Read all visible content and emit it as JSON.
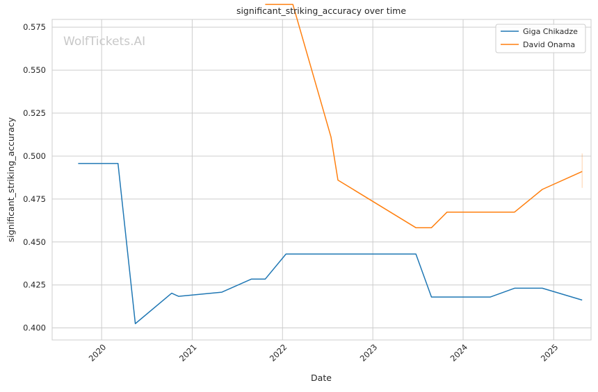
{
  "chart_data": {
    "type": "line",
    "title": "significant_striking_accuracy over time",
    "xlabel": "Date",
    "ylabel": "significant_striking_accuracy",
    "watermark": "WolfTickets.AI",
    "grid": true,
    "legend_position": "top-right",
    "xlim": [
      "2019-06-15",
      "2025-06-01"
    ],
    "ylim": [
      0.393,
      0.5795
    ],
    "x_ticks": [
      "2020-01-01",
      "2021-01-01",
      "2022-01-01",
      "2023-01-01",
      "2024-01-01",
      "2025-01-01"
    ],
    "x_tick_labels": [
      "2020",
      "2021",
      "2022",
      "2023",
      "2024",
      "2025"
    ],
    "y_ticks": [
      0.4,
      0.425,
      0.45,
      0.475,
      0.5,
      0.525,
      0.55,
      0.575
    ],
    "y_tick_labels": [
      "0.400",
      "0.425",
      "0.450",
      "0.475",
      "0.500",
      "0.525",
      "0.550",
      "0.575"
    ],
    "series": [
      {
        "name": "Giga Chikadze",
        "color": "#1f77b4",
        "points": [
          {
            "x": "2019-09-28",
            "y": 0.4957
          },
          {
            "x": "2020-03-07",
            "y": 0.4957
          },
          {
            "x": "2020-05-16",
            "y": 0.4025
          },
          {
            "x": "2020-10-10",
            "y": 0.4202
          },
          {
            "x": "2020-11-07",
            "y": 0.4184
          },
          {
            "x": "2021-05-01",
            "y": 0.4208
          },
          {
            "x": "2021-08-28",
            "y": 0.4284
          },
          {
            "x": "2021-10-23",
            "y": 0.4284
          },
          {
            "x": "2022-01-15",
            "y": 0.443
          },
          {
            "x": "2023-06-24",
            "y": 0.443
          },
          {
            "x": "2023-08-26",
            "y": 0.418
          },
          {
            "x": "2024-04-20",
            "y": 0.418
          },
          {
            "x": "2024-07-27",
            "y": 0.4231
          },
          {
            "x": "2024-11-16",
            "y": 0.4231
          },
          {
            "x": "2025-04-26",
            "y": 0.4162
          }
        ]
      },
      {
        "name": "David Onama",
        "color": "#ff7f0e",
        "points": [
          {
            "x": "2021-10-23",
            "y": 0.5882
          },
          {
            "x": "2022-02-12",
            "y": 0.5882
          },
          {
            "x": "2022-07-16",
            "y": 0.5111
          },
          {
            "x": "2022-08-13",
            "y": 0.486
          },
          {
            "x": "2023-06-24",
            "y": 0.4583
          },
          {
            "x": "2023-08-26",
            "y": 0.4583
          },
          {
            "x": "2023-10-28",
            "y": 0.4674
          },
          {
            "x": "2024-07-27",
            "y": 0.4674
          },
          {
            "x": "2024-11-16",
            "y": 0.4806
          },
          {
            "x": "2025-04-26",
            "y": 0.491
          }
        ],
        "error_bar": {
          "x": "2025-04-26",
          "low": 0.4815,
          "high": 0.5015
        }
      }
    ]
  }
}
